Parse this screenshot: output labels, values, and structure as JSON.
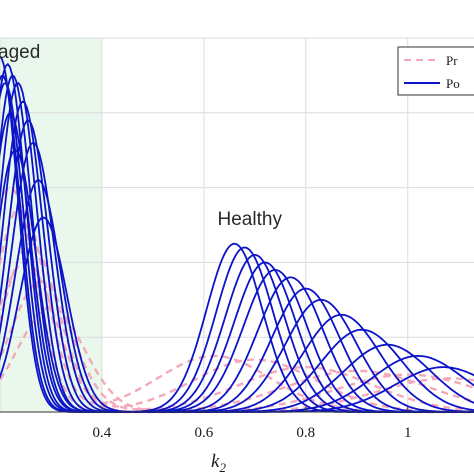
{
  "chart_data": {
    "type": "line",
    "xlabel": "k",
    "xlabel_subscript": "2",
    "xlim": [
      0.2,
      1.13
    ],
    "ylim": [
      0,
      1
    ],
    "x_ticks": [
      {
        "value": 0.4,
        "label": "0.4"
      },
      {
        "value": 0.6,
        "label": "0.6"
      },
      {
        "value": 0.8,
        "label": "0.8"
      },
      {
        "value": 1.0,
        "label": "1"
      }
    ],
    "grid": true,
    "legend_position": "top-right",
    "legend": [
      {
        "label": "Pr",
        "style": "dashed",
        "color": "#f4a9b8"
      },
      {
        "label": "Po",
        "style": "solid",
        "color": "#0b14c8"
      }
    ],
    "regions": [
      {
        "label": "aged",
        "x_start": 0.2,
        "x_end": 0.4,
        "color": "#e9f7ec"
      },
      {
        "label": "Healthy",
        "x_center": 0.69
      }
    ],
    "series": [
      {
        "style": "solid",
        "color": "#0b14c8",
        "components": [
          {
            "mu": 0.205,
            "sigma": 0.035,
            "amp": 0.9
          },
          {
            "mu": 0.66,
            "sigma": 0.055,
            "amp": 0.45
          }
        ]
      },
      {
        "style": "solid",
        "color": "#0b14c8",
        "components": [
          {
            "mu": 0.215,
            "sigma": 0.036,
            "amp": 0.93
          },
          {
            "mu": 0.68,
            "sigma": 0.056,
            "amp": 0.44
          }
        ]
      },
      {
        "style": "solid",
        "color": "#0b14c8",
        "components": [
          {
            "mu": 0.225,
            "sigma": 0.037,
            "amp": 0.9
          },
          {
            "mu": 0.7,
            "sigma": 0.058,
            "amp": 0.42
          }
        ]
      },
      {
        "style": "solid",
        "color": "#0b14c8",
        "components": [
          {
            "mu": 0.235,
            "sigma": 0.038,
            "amp": 0.88
          },
          {
            "mu": 0.72,
            "sigma": 0.06,
            "amp": 0.4
          }
        ]
      },
      {
        "style": "solid",
        "color": "#0b14c8",
        "components": [
          {
            "mu": 0.245,
            "sigma": 0.039,
            "amp": 0.83
          },
          {
            "mu": 0.74,
            "sigma": 0.062,
            "amp": 0.38
          }
        ]
      },
      {
        "style": "solid",
        "color": "#0b14c8",
        "components": [
          {
            "mu": 0.255,
            "sigma": 0.04,
            "amp": 0.78
          },
          {
            "mu": 0.77,
            "sigma": 0.064,
            "amp": 0.36
          }
        ]
      },
      {
        "style": "solid",
        "color": "#0b14c8",
        "components": [
          {
            "mu": 0.265,
            "sigma": 0.042,
            "amp": 0.72
          },
          {
            "mu": 0.8,
            "sigma": 0.066,
            "amp": 0.33
          }
        ]
      },
      {
        "style": "solid",
        "color": "#0b14c8",
        "components": [
          {
            "mu": 0.275,
            "sigma": 0.044,
            "amp": 0.62
          },
          {
            "mu": 0.83,
            "sigma": 0.07,
            "amp": 0.3
          }
        ]
      },
      {
        "style": "solid",
        "color": "#0b14c8",
        "components": [
          {
            "mu": 0.285,
            "sigma": 0.046,
            "amp": 0.52
          },
          {
            "mu": 0.87,
            "sigma": 0.075,
            "amp": 0.26
          }
        ]
      },
      {
        "style": "solid",
        "color": "#0b14c8",
        "components": [
          {
            "mu": 0.2,
            "sigma": 0.035,
            "amp": 0.95
          },
          {
            "mu": 0.91,
            "sigma": 0.08,
            "amp": 0.22
          }
        ]
      },
      {
        "style": "solid",
        "color": "#0b14c8",
        "components": [
          {
            "mu": 0.21,
            "sigma": 0.036,
            "amp": 0.88
          },
          {
            "mu": 0.96,
            "sigma": 0.085,
            "amp": 0.18
          }
        ]
      },
      {
        "style": "solid",
        "color": "#0b14c8",
        "components": [
          {
            "mu": 0.22,
            "sigma": 0.038,
            "amp": 0.8
          },
          {
            "mu": 1.02,
            "sigma": 0.09,
            "amp": 0.15
          }
        ]
      },
      {
        "style": "solid",
        "color": "#0b14c8",
        "components": [
          {
            "mu": 0.23,
            "sigma": 0.04,
            "amp": 0.7
          },
          {
            "mu": 1.07,
            "sigma": 0.095,
            "amp": 0.12
          }
        ]
      },
      {
        "style": "dashed",
        "color": "#f4a9b8",
        "components": [
          {
            "mu": 0.24,
            "sigma": 0.05,
            "amp": 0.55
          },
          {
            "mu": 0.62,
            "sigma": 0.11,
            "amp": 0.15
          }
        ]
      },
      {
        "style": "dashed",
        "color": "#f4a9b8",
        "components": [
          {
            "mu": 0.26,
            "sigma": 0.055,
            "amp": 0.45
          },
          {
            "mu": 0.7,
            "sigma": 0.12,
            "amp": 0.14
          }
        ]
      },
      {
        "style": "dashed",
        "color": "#f4a9b8",
        "components": [
          {
            "mu": 0.28,
            "sigma": 0.06,
            "amp": 0.35
          },
          {
            "mu": 0.8,
            "sigma": 0.13,
            "amp": 0.12
          }
        ]
      },
      {
        "style": "dashed",
        "color": "#f4a9b8",
        "components": [
          {
            "mu": 0.3,
            "sigma": 0.065,
            "amp": 0.28
          },
          {
            "mu": 0.9,
            "sigma": 0.14,
            "amp": 0.11
          }
        ]
      },
      {
        "style": "dashed",
        "color": "#f4a9b8",
        "components": [
          {
            "mu": 0.22,
            "sigma": 0.05,
            "amp": 0.6
          },
          {
            "mu": 1.0,
            "sigma": 0.14,
            "amp": 0.1
          }
        ]
      },
      {
        "style": "dashed",
        "color": "#f4a9b8",
        "components": [
          {
            "mu": 0.25,
            "sigma": 0.06,
            "amp": 0.4
          },
          {
            "mu": 1.08,
            "sigma": 0.14,
            "amp": 0.09
          }
        ]
      }
    ]
  }
}
